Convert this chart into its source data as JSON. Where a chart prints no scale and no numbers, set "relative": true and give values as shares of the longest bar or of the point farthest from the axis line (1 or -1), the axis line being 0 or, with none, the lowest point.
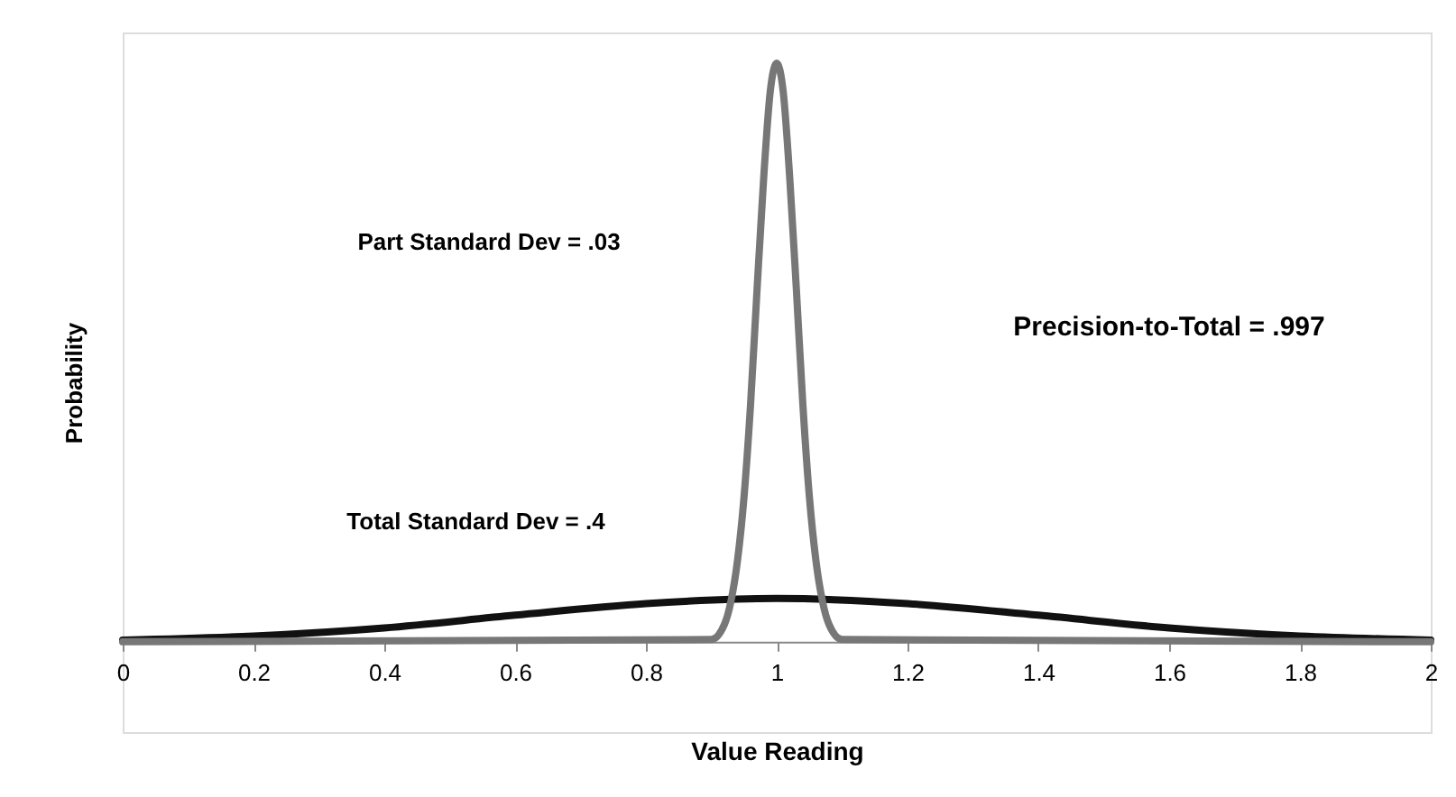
{
  "chart_data": {
    "type": "line",
    "xlabel": "Value Reading",
    "ylabel": "Probability",
    "relative": true,
    "xlim": [
      0,
      2
    ],
    "xticks": [
      0,
      0.2,
      0.4,
      0.6,
      0.8,
      1,
      1.2,
      1.4,
      1.6,
      1.8,
      2
    ],
    "grid": false,
    "marker": "none",
    "line_style": "solid",
    "series": [
      {
        "color": "#111111",
        "x": [
          0,
          0.2,
          0.4,
          0.6,
          0.8,
          1.0,
          1.2,
          1.4,
          1.6,
          1.8,
          2.0
        ],
        "values": [
          0.003,
          0.01,
          0.024,
          0.046,
          0.066,
          0.075,
          0.066,
          0.046,
          0.024,
          0.01,
          0.003
        ]
      },
      {
        "color": "#777777",
        "x": [
          0,
          0.9,
          0.92,
          0.93,
          0.94,
          0.95,
          0.96,
          0.97,
          0.98,
          0.99,
          1.0,
          1.01,
          1.02,
          1.03,
          1.04,
          1.05,
          1.06,
          1.07,
          1.08,
          1.1,
          2.0
        ],
        "values": [
          0,
          0.004,
          0.03,
          0.07,
          0.14,
          0.25,
          0.41,
          0.61,
          0.8,
          0.95,
          1,
          0.95,
          0.8,
          0.61,
          0.41,
          0.25,
          0.14,
          0.07,
          0.03,
          0.004,
          0
        ]
      }
    ],
    "annotations": [
      "Part Standard Dev = .03",
      "Total Standard Dev = .4",
      "Precision-to-Total = .997"
    ]
  }
}
